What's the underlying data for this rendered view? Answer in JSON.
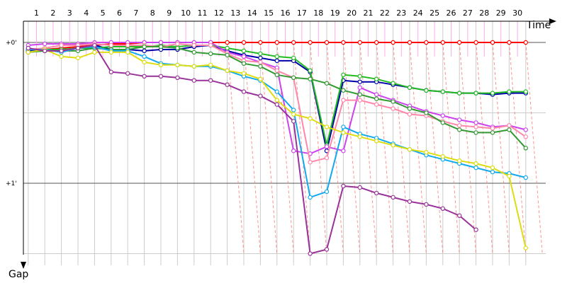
{
  "chart_data": {
    "type": "line",
    "title": "",
    "xlabel": "Time",
    "ylabel": "Gap",
    "x_ticks": [
      1,
      2,
      3,
      4,
      5,
      6,
      7,
      8,
      9,
      10,
      11,
      12,
      13,
      14,
      15,
      16,
      17,
      18,
      19,
      20,
      21,
      22,
      23,
      24,
      25,
      26,
      27,
      28,
      29,
      30
    ],
    "y_tick_labels": [
      {
        "value": 0,
        "label": "+0'"
      },
      {
        "value": 1,
        "label": "+1'"
      }
    ],
    "ylim": [
      0,
      1.5
    ],
    "x_inverted_y": true,
    "grid": true,
    "legend": "none",
    "colors": {
      "red": "#ff0000",
      "darkblue": "#0000aa",
      "green": "#22bb22",
      "violet": "#cc44ee",
      "pink": "#ff88aa",
      "darkgreen": "#339933",
      "cyan": "#11aaee",
      "yellow": "#dddd11",
      "purple": "#993399",
      "pitline": "#ff6666",
      "lapline": "#ffaaee",
      "grid": "#cccccc"
    },
    "series": [
      {
        "color": "red",
        "points": [
          [
            0.5,
            0.07
          ],
          [
            1.5,
            0.05
          ],
          [
            2.5,
            0.04
          ],
          [
            3.5,
            0.03
          ],
          [
            4.5,
            0.02
          ],
          [
            5.5,
            0.01
          ],
          [
            6.5,
            0.01
          ],
          [
            7.5,
            0.0
          ],
          [
            8.5,
            0.0
          ],
          [
            9.5,
            0.0
          ],
          [
            10.5,
            0.0
          ],
          [
            11.5,
            0.0
          ],
          [
            12.5,
            0.0
          ],
          [
            13.5,
            0.0
          ],
          [
            14.5,
            0.0
          ],
          [
            15.5,
            0.0
          ],
          [
            16.5,
            0.0
          ],
          [
            17.5,
            0.0
          ],
          [
            18.5,
            0.0
          ],
          [
            19.5,
            0.0
          ],
          [
            20.5,
            0.0
          ],
          [
            21.5,
            0.0
          ],
          [
            22.5,
            0.0
          ],
          [
            23.5,
            0.0
          ],
          [
            24.5,
            0.0
          ],
          [
            25.5,
            0.0
          ],
          [
            26.5,
            0.0
          ],
          [
            27.5,
            0.0
          ],
          [
            28.5,
            0.0
          ],
          [
            29.5,
            0.0
          ],
          [
            30.5,
            0.0
          ]
        ]
      },
      {
        "color": "darkblue",
        "points": [
          [
            0.5,
            0.06
          ],
          [
            1.5,
            0.06
          ],
          [
            2.5,
            0.06
          ],
          [
            3.5,
            0.04
          ],
          [
            4.5,
            0.02
          ],
          [
            5.5,
            0.05
          ],
          [
            6.5,
            0.05
          ],
          [
            7.5,
            0.06
          ],
          [
            8.5,
            0.05
          ],
          [
            9.5,
            0.05
          ],
          [
            10.5,
            0.03
          ],
          [
            11.5,
            0.02
          ],
          [
            12.5,
            0.06
          ],
          [
            13.5,
            0.09
          ],
          [
            14.5,
            0.11
          ],
          [
            15.5,
            0.13
          ],
          [
            16.5,
            0.13
          ],
          [
            17.5,
            0.21
          ],
          [
            18.5,
            0.77
          ],
          [
            19.5,
            0.27
          ],
          [
            20.5,
            0.28
          ],
          [
            21.5,
            0.28
          ],
          [
            22.5,
            0.3
          ],
          [
            23.5,
            0.32
          ],
          [
            24.5,
            0.34
          ],
          [
            25.5,
            0.35
          ],
          [
            26.5,
            0.36
          ],
          [
            27.5,
            0.36
          ],
          [
            28.5,
            0.37
          ],
          [
            29.5,
            0.36
          ],
          [
            30.5,
            0.36
          ]
        ]
      },
      {
        "color": "green",
        "points": [
          [
            0.5,
            0.05
          ],
          [
            1.5,
            0.05
          ],
          [
            2.5,
            0.05
          ],
          [
            3.5,
            0.04
          ],
          [
            4.5,
            0.04
          ],
          [
            5.5,
            0.03
          ],
          [
            6.5,
            0.03
          ],
          [
            7.5,
            0.03
          ],
          [
            8.5,
            0.02
          ],
          [
            9.5,
            0.03
          ],
          [
            10.5,
            0.02
          ],
          [
            11.5,
            0.02
          ],
          [
            12.5,
            0.04
          ],
          [
            13.5,
            0.06
          ],
          [
            14.5,
            0.08
          ],
          [
            15.5,
            0.1
          ],
          [
            16.5,
            0.11
          ],
          [
            17.5,
            0.2
          ],
          [
            18.5,
            0.73
          ],
          [
            19.5,
            0.23
          ],
          [
            20.5,
            0.24
          ],
          [
            21.5,
            0.26
          ],
          [
            22.5,
            0.29
          ],
          [
            23.5,
            0.32
          ],
          [
            24.5,
            0.34
          ],
          [
            25.5,
            0.35
          ],
          [
            26.5,
            0.36
          ],
          [
            27.5,
            0.36
          ],
          [
            28.5,
            0.36
          ],
          [
            29.5,
            0.35
          ],
          [
            30.5,
            0.35
          ]
        ]
      },
      {
        "color": "violet",
        "points": [
          [
            0.5,
            0.02
          ],
          [
            1.5,
            0.01
          ],
          [
            2.5,
            0.01
          ],
          [
            3.5,
            0.01
          ],
          [
            4.5,
            0.0
          ],
          [
            5.5,
            0.0
          ],
          [
            6.5,
            0.0
          ],
          [
            7.5,
            0.0
          ],
          [
            8.5,
            0.0
          ],
          [
            9.5,
            0.0
          ],
          [
            10.5,
            0.0
          ],
          [
            11.5,
            0.0
          ],
          [
            12.5,
            0.07
          ],
          [
            13.5,
            0.1
          ],
          [
            14.5,
            0.14
          ],
          [
            15.5,
            0.18
          ],
          [
            16.5,
            0.77
          ],
          [
            17.5,
            0.79
          ],
          [
            18.5,
            0.74
          ],
          [
            19.5,
            0.77
          ],
          [
            20.5,
            0.32
          ],
          [
            21.5,
            0.37
          ],
          [
            22.5,
            0.41
          ],
          [
            23.5,
            0.45
          ],
          [
            24.5,
            0.49
          ],
          [
            25.5,
            0.52
          ],
          [
            26.5,
            0.55
          ],
          [
            27.5,
            0.57
          ],
          [
            28.5,
            0.6
          ],
          [
            29.5,
            0.59
          ],
          [
            30.5,
            0.62
          ]
        ]
      },
      {
        "color": "pink",
        "points": [
          [
            0.5,
            0.05
          ],
          [
            1.5,
            0.04
          ],
          [
            2.5,
            0.02
          ],
          [
            3.5,
            0.02
          ],
          [
            4.5,
            0.01
          ],
          [
            5.5,
            0.02
          ],
          [
            6.5,
            0.02
          ],
          [
            7.5,
            0.02
          ],
          [
            8.5,
            0.03
          ],
          [
            9.5,
            0.01
          ],
          [
            10.5,
            0.02
          ],
          [
            11.5,
            0.02
          ],
          [
            12.5,
            0.08
          ],
          [
            13.5,
            0.13
          ],
          [
            14.5,
            0.14
          ],
          [
            15.5,
            0.2
          ],
          [
            16.5,
            0.25
          ],
          [
            17.5,
            0.85
          ],
          [
            18.5,
            0.82
          ],
          [
            19.5,
            0.41
          ],
          [
            20.5,
            0.41
          ],
          [
            21.5,
            0.44
          ],
          [
            22.5,
            0.47
          ],
          [
            23.5,
            0.51
          ],
          [
            24.5,
            0.52
          ],
          [
            25.5,
            0.56
          ],
          [
            26.5,
            0.59
          ],
          [
            27.5,
            0.6
          ],
          [
            28.5,
            0.61
          ],
          [
            29.5,
            0.59
          ],
          [
            30.5,
            0.67
          ]
        ]
      },
      {
        "color": "darkgreen",
        "points": [
          [
            0.5,
            0.07
          ],
          [
            1.5,
            0.06
          ],
          [
            2.5,
            0.06
          ],
          [
            3.5,
            0.06
          ],
          [
            4.5,
            0.04
          ],
          [
            5.5,
            0.05
          ],
          [
            6.5,
            0.05
          ],
          [
            7.5,
            0.03
          ],
          [
            8.5,
            0.03
          ],
          [
            9.5,
            0.04
          ],
          [
            10.5,
            0.07
          ],
          [
            11.5,
            0.08
          ],
          [
            12.5,
            0.09
          ],
          [
            13.5,
            0.15
          ],
          [
            14.5,
            0.17
          ],
          [
            15.5,
            0.23
          ],
          [
            16.5,
            0.25
          ],
          [
            17.5,
            0.26
          ],
          [
            18.5,
            0.29
          ],
          [
            19.5,
            0.34
          ],
          [
            20.5,
            0.37
          ],
          [
            21.5,
            0.4
          ],
          [
            22.5,
            0.42
          ],
          [
            23.5,
            0.47
          ],
          [
            24.5,
            0.5
          ],
          [
            25.5,
            0.57
          ],
          [
            26.5,
            0.62
          ],
          [
            27.5,
            0.64
          ],
          [
            28.5,
            0.64
          ],
          [
            29.5,
            0.62
          ],
          [
            30.5,
            0.75
          ]
        ]
      },
      {
        "color": "cyan",
        "points": [
          [
            0.5,
            0.05
          ],
          [
            1.5,
            0.05
          ],
          [
            2.5,
            0.07
          ],
          [
            3.5,
            0.04
          ],
          [
            4.5,
            0.03
          ],
          [
            5.5,
            0.06
          ],
          [
            6.5,
            0.06
          ],
          [
            7.5,
            0.1
          ],
          [
            8.5,
            0.15
          ],
          [
            9.5,
            0.16
          ],
          [
            10.5,
            0.17
          ],
          [
            11.5,
            0.17
          ],
          [
            12.5,
            0.2
          ],
          [
            13.5,
            0.24
          ],
          [
            14.5,
            0.27
          ],
          [
            15.5,
            0.35
          ],
          [
            16.5,
            0.48
          ],
          [
            17.5,
            1.1
          ],
          [
            18.5,
            1.06
          ],
          [
            19.5,
            0.6
          ],
          [
            20.5,
            0.65
          ],
          [
            21.5,
            0.68
          ],
          [
            22.5,
            0.72
          ],
          [
            23.5,
            0.76
          ],
          [
            24.5,
            0.8
          ],
          [
            25.5,
            0.83
          ],
          [
            26.5,
            0.86
          ],
          [
            27.5,
            0.89
          ],
          [
            28.5,
            0.92
          ],
          [
            29.5,
            0.93
          ],
          [
            30.5,
            0.96
          ]
        ]
      },
      {
        "color": "yellow",
        "points": [
          [
            0.5,
            0.07
          ],
          [
            1.5,
            0.05
          ],
          [
            2.5,
            0.1
          ],
          [
            3.5,
            0.11
          ],
          [
            4.5,
            0.07
          ],
          [
            5.5,
            0.07
          ],
          [
            6.5,
            0.07
          ],
          [
            7.5,
            0.14
          ],
          [
            8.5,
            0.16
          ],
          [
            9.5,
            0.16
          ],
          [
            10.5,
            0.17
          ],
          [
            11.5,
            0.16
          ],
          [
            12.5,
            0.2
          ],
          [
            13.5,
            0.22
          ],
          [
            14.5,
            0.26
          ],
          [
            15.5,
            0.41
          ],
          [
            16.5,
            0.51
          ],
          [
            17.5,
            0.54
          ],
          [
            18.5,
            0.6
          ],
          [
            19.5,
            0.64
          ],
          [
            20.5,
            0.67
          ],
          [
            21.5,
            0.7
          ],
          [
            22.5,
            0.73
          ],
          [
            23.5,
            0.76
          ],
          [
            24.5,
            0.78
          ],
          [
            25.5,
            0.81
          ],
          [
            26.5,
            0.84
          ],
          [
            27.5,
            0.86
          ],
          [
            28.5,
            0.89
          ],
          [
            29.5,
            0.95
          ],
          [
            30.5,
            1.46
          ]
        ]
      },
      {
        "color": "purple",
        "points": [
          [
            0.5,
            0.04
          ],
          [
            1.5,
            0.06
          ],
          [
            2.5,
            0.06
          ],
          [
            3.5,
            0.04
          ],
          [
            4.5,
            0.02
          ],
          [
            5.5,
            0.21
          ],
          [
            6.5,
            0.22
          ],
          [
            7.5,
            0.24
          ],
          [
            8.5,
            0.24
          ],
          [
            9.5,
            0.25
          ],
          [
            10.5,
            0.27
          ],
          [
            11.5,
            0.27
          ],
          [
            12.5,
            0.3
          ],
          [
            13.5,
            0.35
          ],
          [
            14.5,
            0.38
          ],
          [
            15.5,
            0.44
          ],
          [
            16.5,
            0.56
          ],
          [
            17.5,
            1.5
          ],
          [
            18.5,
            1.47
          ],
          [
            19.5,
            1.02
          ],
          [
            20.5,
            1.03
          ],
          [
            21.5,
            1.07
          ],
          [
            22.5,
            1.1
          ],
          [
            23.5,
            1.13
          ],
          [
            24.5,
            1.15
          ],
          [
            25.5,
            1.18
          ],
          [
            26.5,
            1.23
          ],
          [
            27.5,
            1.33
          ]
        ]
      }
    ]
  }
}
